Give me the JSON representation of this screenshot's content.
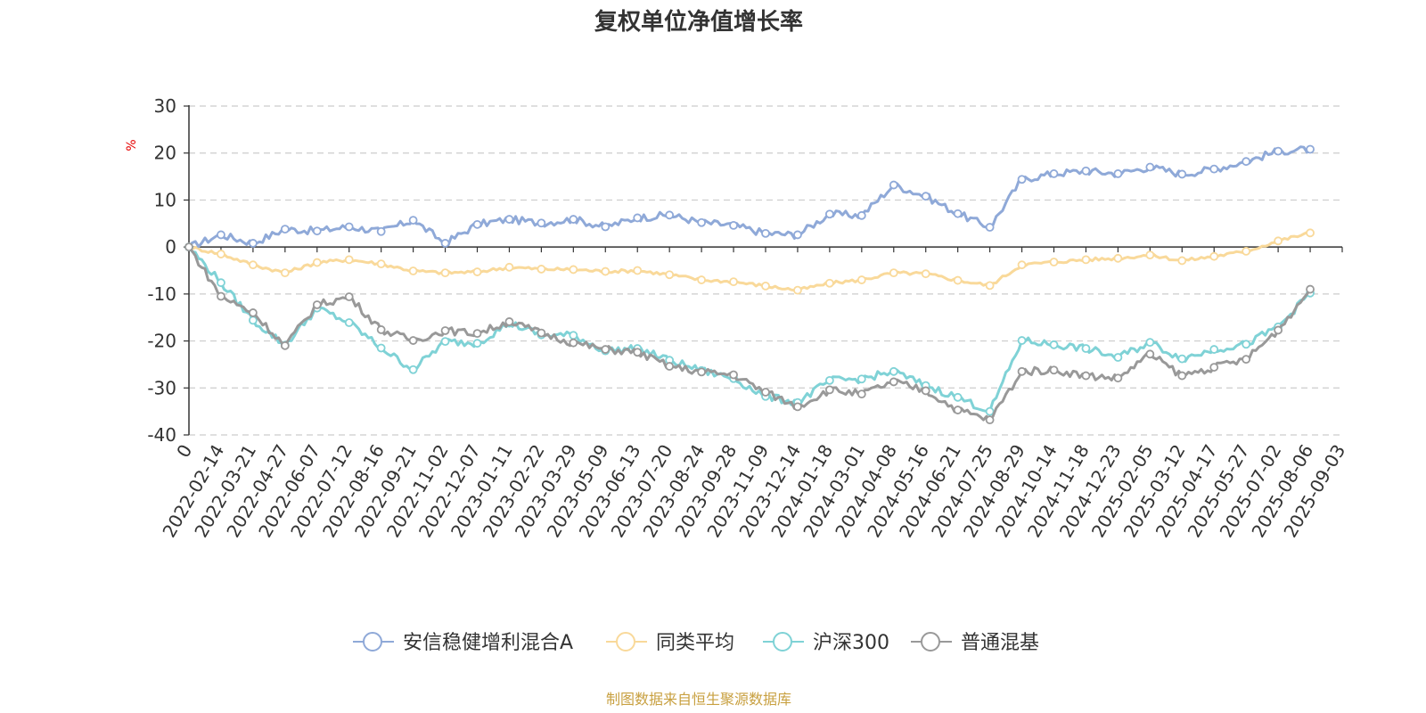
{
  "chart_data": {
    "type": "line",
    "title": "复权单位净值增长率",
    "ylabel": "%",
    "ylim": [
      -40,
      30
    ],
    "yticks": [
      30,
      20,
      10,
      0,
      -10,
      -20,
      -30,
      -40
    ],
    "grid": true,
    "legend_position": "bottom",
    "x_start_label": "0",
    "x": [
      "2022-02-14",
      "2022-03-21",
      "2022-04-27",
      "2022-06-07",
      "2022-07-12",
      "2022-08-16",
      "2022-09-21",
      "2022-11-02",
      "2022-12-07",
      "2023-01-11",
      "2023-02-22",
      "2023-03-29",
      "2023-05-09",
      "2023-06-13",
      "2023-07-20",
      "2023-08-24",
      "2023-09-28",
      "2023-11-09",
      "2023-12-14",
      "2024-01-18",
      "2024-03-01",
      "2024-04-08",
      "2024-05-16",
      "2024-06-21",
      "2024-07-25",
      "2024-08-29",
      "2024-10-14",
      "2024-11-18",
      "2024-12-23",
      "2025-02-05",
      "2025-03-12",
      "2025-04-17",
      "2025-05-27",
      "2025-07-02",
      "2025-08-06",
      "2025-09-03"
    ],
    "series": [
      {
        "name": "安信稳健增利混合A",
        "color": "#8fa9d8",
        "values": [
          0,
          2.6,
          0.8,
          3.8,
          3.4,
          4.3,
          3.3,
          5.7,
          0.8,
          4.8,
          5.9,
          5.1,
          5.9,
          4.3,
          6.2,
          6.8,
          5.2,
          4.6,
          2.9,
          2.6,
          7.0,
          6.7,
          13.2,
          10.8,
          7.1,
          4.2,
          14.4,
          15.6,
          16.2,
          15.6,
          17.0,
          15.5,
          16.6,
          18.2,
          20.4,
          20.8
        ]
      },
      {
        "name": "同类平均",
        "color": "#f9d99a",
        "values": [
          0,
          -1.5,
          -3.8,
          -5.5,
          -3.3,
          -2.7,
          -3.6,
          -5.1,
          -5.5,
          -5.3,
          -4.3,
          -4.7,
          -4.8,
          -5.2,
          -5.0,
          -5.9,
          -7.0,
          -7.4,
          -8.3,
          -9.2,
          -7.7,
          -7.0,
          -5.5,
          -5.7,
          -7.1,
          -8.2,
          -3.8,
          -3.2,
          -2.7,
          -2.4,
          -1.7,
          -2.9,
          -2.0,
          -0.9,
          1.3,
          3.0
        ]
      },
      {
        "name": "沪深300",
        "color": "#7fd2d6",
        "values": [
          0,
          -7.6,
          -15.6,
          -20.9,
          -13.0,
          -16.1,
          -21.5,
          -26.1,
          -20.1,
          -20.5,
          -16.2,
          -18.7,
          -18.8,
          -22.1,
          -21.6,
          -24.1,
          -26.3,
          -28.0,
          -31.8,
          -33.1,
          -28.4,
          -28.1,
          -26.5,
          -29.5,
          -32.0,
          -35.0,
          -19.9,
          -20.8,
          -21.6,
          -23.5,
          -20.3,
          -23.8,
          -21.8,
          -20.7,
          -17.0,
          -9.8
        ]
      },
      {
        "name": "普通混基",
        "color": "#999999",
        "values": [
          0,
          -10.5,
          -14.0,
          -21.0,
          -12.3,
          -10.6,
          -17.6,
          -19.9,
          -17.8,
          -18.4,
          -15.9,
          -18.3,
          -20.4,
          -21.8,
          -22.4,
          -25.4,
          -26.6,
          -27.2,
          -30.9,
          -34.0,
          -30.4,
          -31.3,
          -28.7,
          -30.6,
          -34.7,
          -36.8,
          -26.5,
          -26.2,
          -27.4,
          -27.9,
          -22.8,
          -27.4,
          -25.6,
          -23.9,
          -17.7,
          -9.0
        ]
      }
    ]
  },
  "footer": {
    "source": "制图数据来自恒生聚源数据库"
  }
}
